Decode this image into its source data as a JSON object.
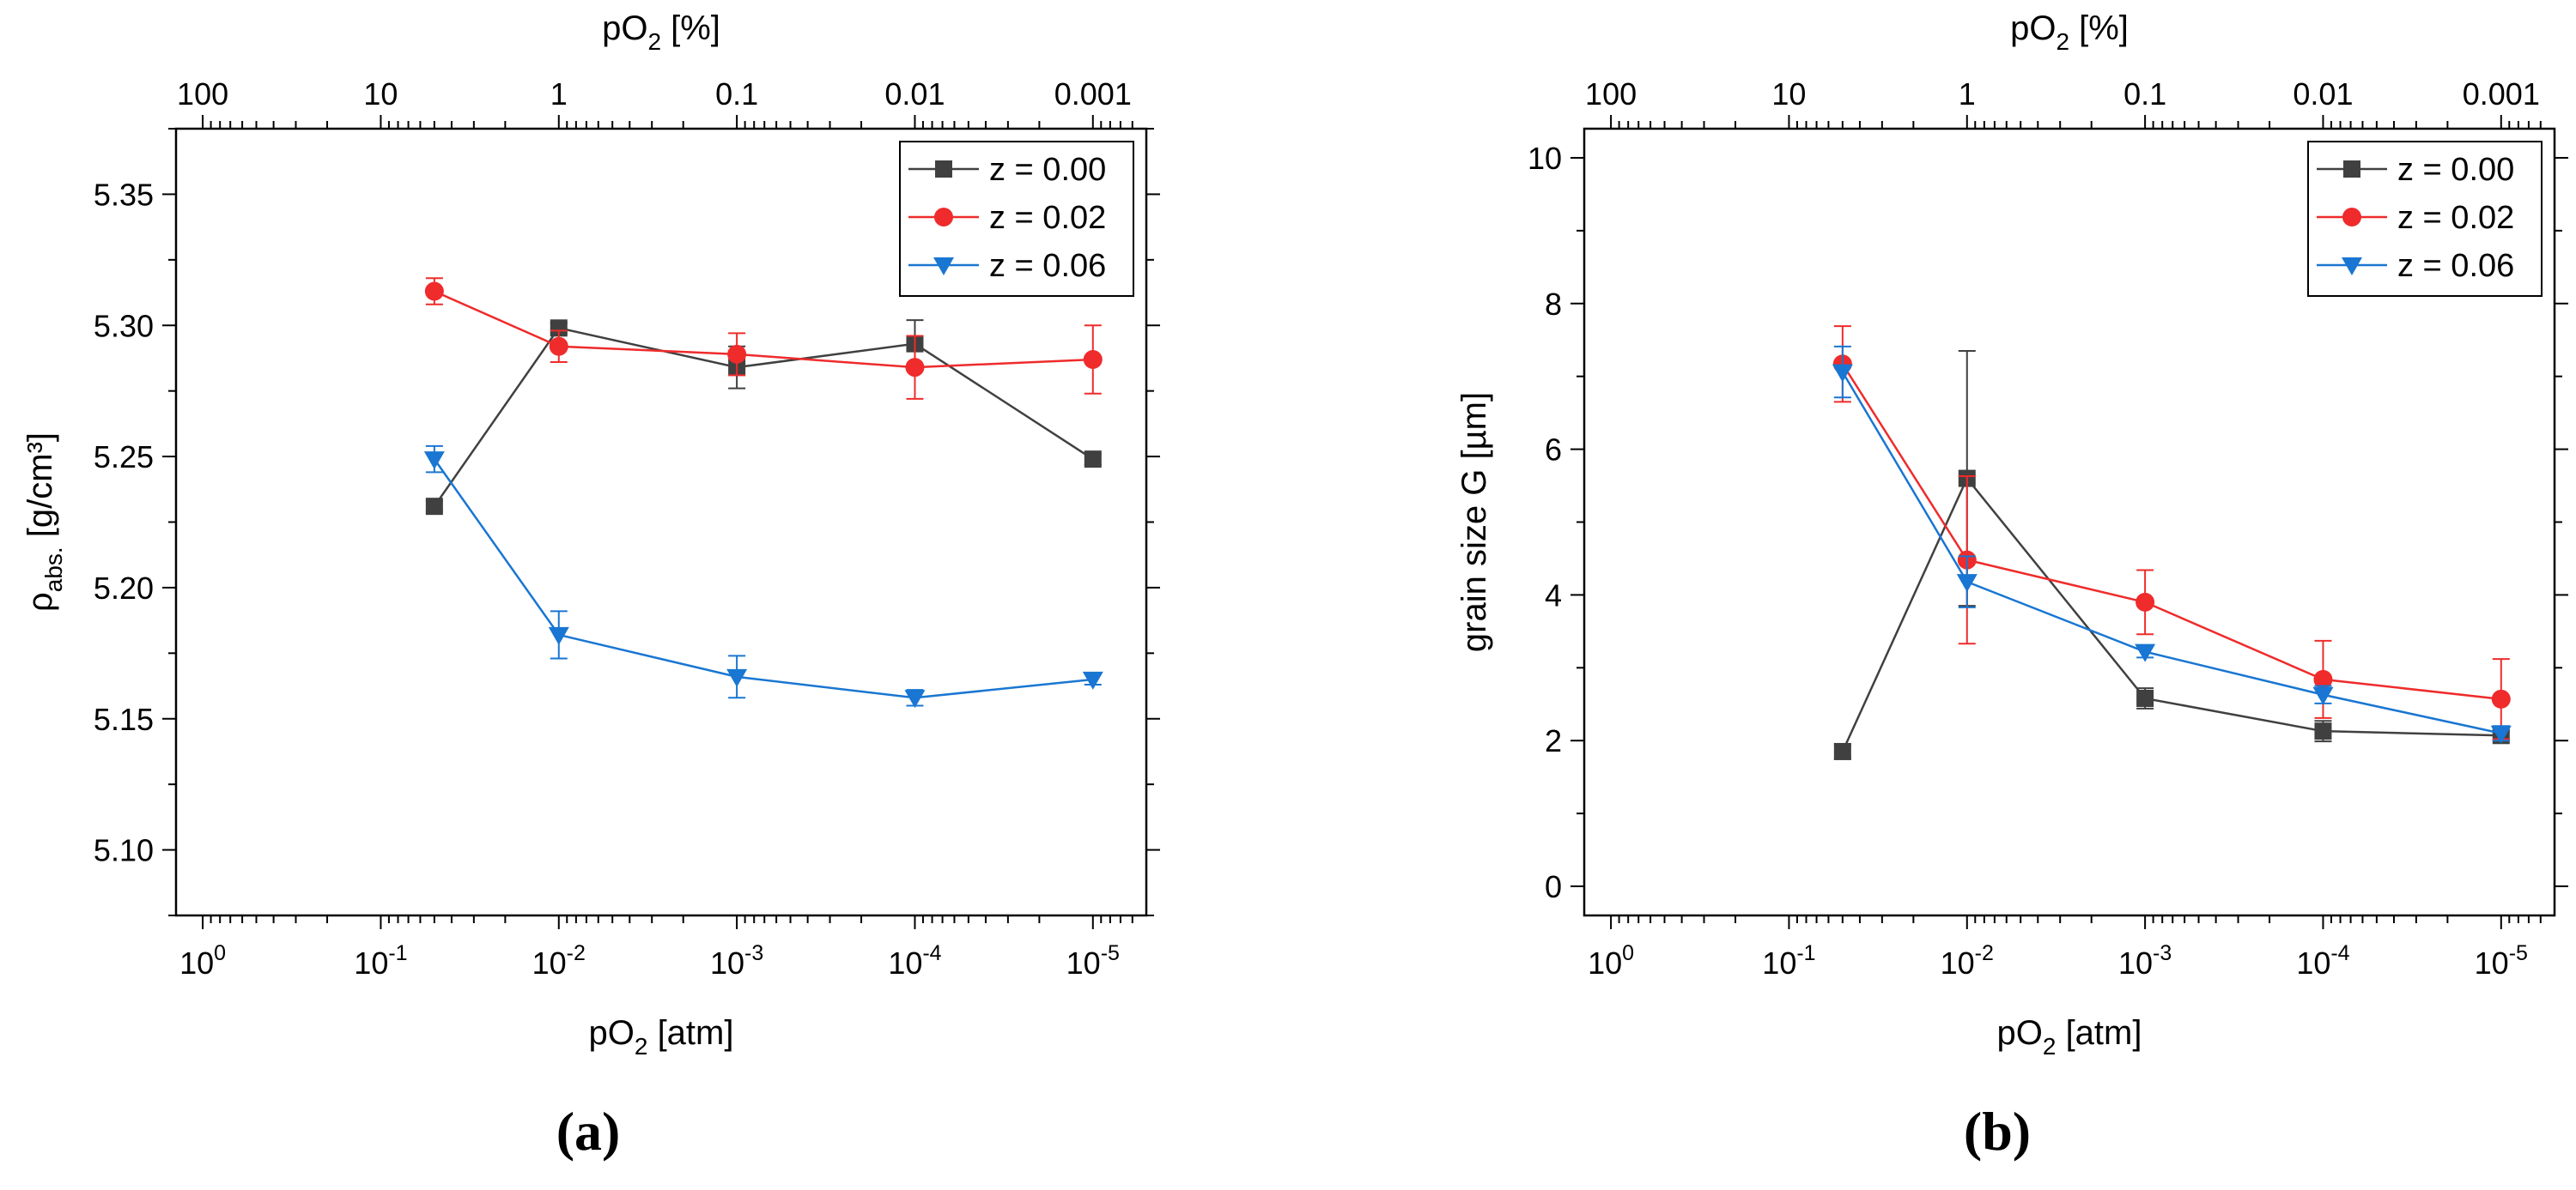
{
  "colors": {
    "z000": "#404040",
    "z002": "#ef2b2b",
    "z006": "#1976d2",
    "axis": "#000000",
    "legend_border": "#000000"
  },
  "chart_data": [
    {
      "type": "line",
      "panel_label": "(a)",
      "ylabel_main": "ρ",
      "ylabel_sub": "abs.",
      "ylabel_rest": " [g/cm³]",
      "xlabel_main": "pO",
      "xlabel_sub": "2",
      "xlabel_rest": " [atm]",
      "top_xlabel_main": "pO",
      "top_xlabel_sub": "2",
      "top_xlabel_rest": " [%]",
      "xscale": "log",
      "xlim_exp": [
        0.15,
        -5.3
      ],
      "x_tick_exponents": [
        0,
        -1,
        -2,
        -3,
        -4,
        -5
      ],
      "x_tick_base": "10",
      "x_tick_exp_labels": [
        "0",
        "-1",
        "-2",
        "-3",
        "-4",
        "-5"
      ],
      "top_tick_labels": [
        "100",
        "10",
        "1",
        "0.1",
        "0.01",
        "0.001"
      ],
      "ylim": [
        5.075,
        5.375
      ],
      "y_ticks": [
        5.1,
        5.15,
        5.2,
        5.25,
        5.3,
        5.35
      ],
      "y_tick_labels": [
        "5.10",
        "5.15",
        "5.20",
        "5.25",
        "5.30",
        "5.35"
      ],
      "y_minor_ticks": [
        5.075,
        5.125,
        5.175,
        5.225,
        5.275,
        5.325,
        5.375
      ],
      "legend_position": "top-right",
      "x": [
        0.05,
        0.01,
        0.001,
        0.0001,
        1e-05
      ],
      "series": [
        {
          "name": "z = 0.00",
          "key": "z000",
          "marker": "square",
          "values": [
            5.231,
            5.299,
            5.284,
            5.293,
            5.249
          ],
          "errors": [
            0.002,
            0.002,
            0.008,
            0.009,
            0.002
          ]
        },
        {
          "name": "z = 0.02",
          "key": "z002",
          "marker": "circle",
          "values": [
            5.313,
            5.292,
            5.289,
            5.284,
            5.287
          ],
          "errors": [
            0.005,
            0.006,
            0.008,
            0.012,
            0.013
          ]
        },
        {
          "name": "z = 0.06",
          "key": "z006",
          "marker": "triangle-down",
          "values": [
            5.249,
            5.182,
            5.166,
            5.158,
            5.165
          ],
          "errors": [
            0.005,
            0.009,
            0.008,
            0.003,
            0.002
          ]
        }
      ]
    },
    {
      "type": "line",
      "panel_label": "(b)",
      "ylabel_main": "grain size G [µm]",
      "ylabel_sub": "",
      "ylabel_rest": "",
      "xlabel_main": "pO",
      "xlabel_sub": "2",
      "xlabel_rest": " [atm]",
      "top_xlabel_main": "pO",
      "top_xlabel_sub": "2",
      "top_xlabel_rest": " [%]",
      "xscale": "log",
      "xlim_exp": [
        0.15,
        -5.3
      ],
      "x_tick_exponents": [
        0,
        -1,
        -2,
        -3,
        -4,
        -5
      ],
      "x_tick_base": "10",
      "x_tick_exp_labels": [
        "0",
        "-1",
        "-2",
        "-3",
        "-4",
        "-5"
      ],
      "top_tick_labels": [
        "100",
        "10",
        "1",
        "0.1",
        "0.01",
        "0.001"
      ],
      "ylim": [
        -0.4,
        10.4
      ],
      "y_ticks": [
        0,
        2,
        4,
        6,
        8,
        10
      ],
      "y_tick_labels": [
        "0",
        "2",
        "4",
        "6",
        "8",
        "10"
      ],
      "y_minor_ticks": [
        1,
        3,
        5,
        7,
        9
      ],
      "legend_position": "top-right",
      "x": [
        0.05,
        0.01,
        0.001,
        0.0001,
        1e-05
      ],
      "series": [
        {
          "name": "z = 0.00",
          "key": "z000",
          "marker": "square",
          "values": [
            1.85,
            5.6,
            2.58,
            2.13,
            2.07
          ],
          "errors": [
            0.1,
            1.75,
            0.14,
            0.14,
            0.06
          ]
        },
        {
          "name": "z = 0.02",
          "key": "z002",
          "marker": "circle",
          "values": [
            7.17,
            4.48,
            3.9,
            2.84,
            2.57
          ],
          "errors": [
            0.52,
            1.15,
            0.44,
            0.53,
            0.55
          ]
        },
        {
          "name": "z = 0.06",
          "key": "z006",
          "marker": "triangle-down",
          "values": [
            7.06,
            4.18,
            3.22,
            2.63,
            2.1
          ],
          "errors": [
            0.35,
            0.35,
            0.08,
            0.12,
            0.1
          ]
        }
      ]
    }
  ]
}
